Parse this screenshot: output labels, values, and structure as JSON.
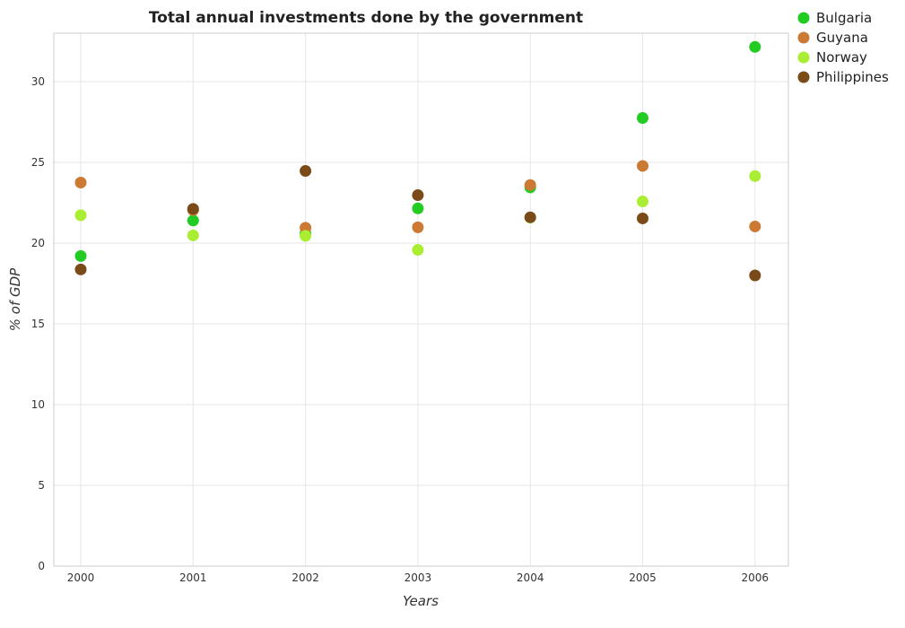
{
  "chart_data": {
    "type": "scatter",
    "title": "Total annual investments done by the government",
    "xlabel": "Years",
    "ylabel": "% of GDP",
    "categories": [
      "2000",
      "2001",
      "2002",
      "2003",
      "2004",
      "2005",
      "2006"
    ],
    "ylim": [
      0,
      33
    ],
    "yticks": [
      0,
      5,
      10,
      15,
      20,
      25,
      30
    ],
    "ytick_labels": [
      "0",
      "5",
      "10",
      "15",
      "20",
      "25",
      "30"
    ],
    "grid": true,
    "legend_position": "top-right",
    "series": [
      {
        "name": "Bulgaria",
        "color": "#22cc22",
        "values": [
          19.2,
          21.4,
          20.6,
          22.15,
          23.45,
          27.75,
          32.15
        ]
      },
      {
        "name": "Guyana",
        "color": "#cc7a33",
        "values": [
          23.75,
          22.05,
          20.95,
          20.98,
          23.6,
          24.78,
          21.03
        ]
      },
      {
        "name": "Norway",
        "color": "#aaee33",
        "values": [
          21.73,
          20.48,
          20.45,
          19.58,
          21.58,
          22.58,
          24.15
        ]
      },
      {
        "name": "Philippines",
        "color": "#7a4a18",
        "values": [
          18.37,
          22.12,
          24.47,
          22.97,
          21.6,
          21.53,
          18.0
        ]
      }
    ]
  }
}
